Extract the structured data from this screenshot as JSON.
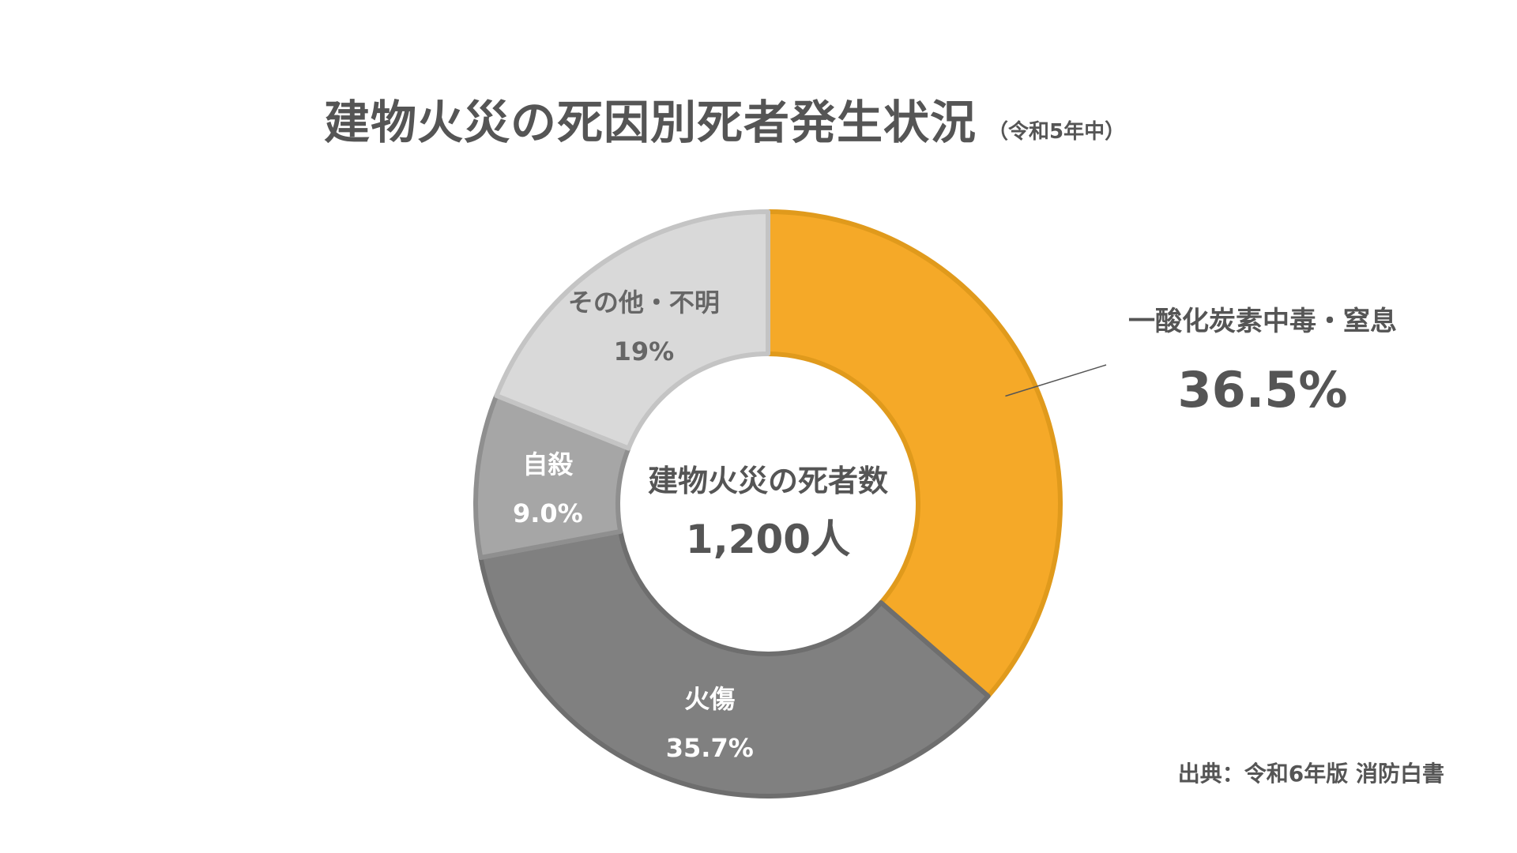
{
  "title": "建物火災の死因別死者発生状況",
  "subtitle": "（令和5年中）",
  "source": "出典：令和6年版 消防白書",
  "center": {
    "label": "建物火災の死者数",
    "value": "1,200人"
  },
  "chart_data": {
    "type": "pie",
    "donut": true,
    "slices": [
      {
        "label": "一酸化炭素中毒・窒息",
        "value": 36.5,
        "value_label": "36.5%",
        "color": "#F5A928"
      },
      {
        "label": "火傷",
        "value": 35.7,
        "value_label": "35.7%",
        "color": "#808080"
      },
      {
        "label": "自殺",
        "value": 9.0,
        "value_label": "9.0%",
        "color": "#A6A6A6"
      },
      {
        "label": "その他・不明",
        "value": 19,
        "value_label": "19%",
        "color": "#D9D9D9"
      }
    ]
  }
}
